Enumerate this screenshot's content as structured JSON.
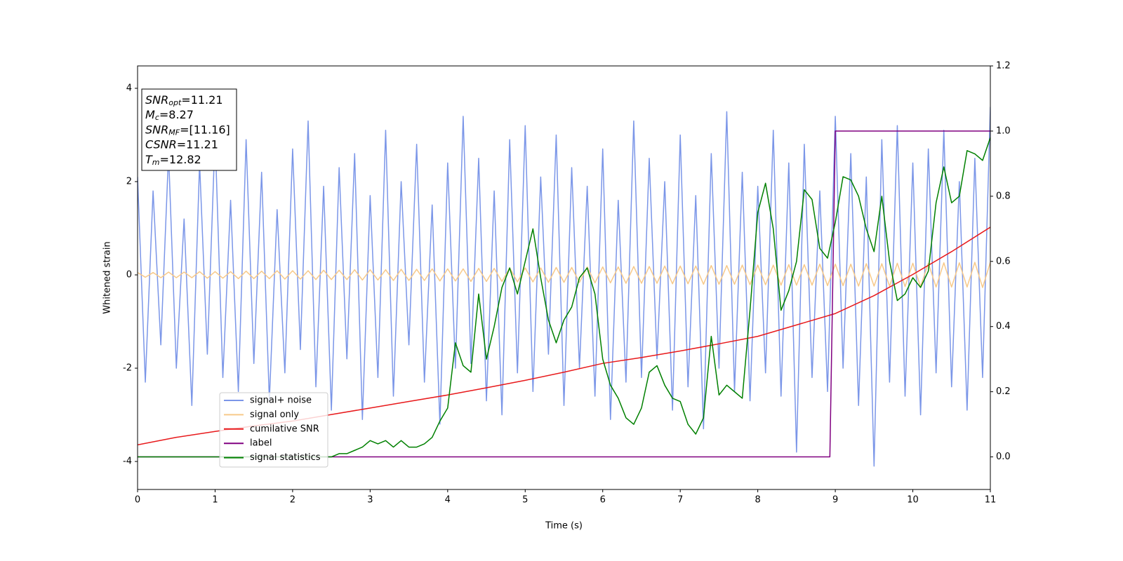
{
  "chart_data": {
    "type": "line",
    "xlabel": "Time (s)",
    "ylabel": "Whitened strain",
    "xlim": [
      0,
      11
    ],
    "xticks": [
      0,
      1,
      2,
      3,
      4,
      5,
      6,
      7,
      8,
      9,
      10,
      11
    ],
    "ylim": [
      -4.6,
      4.48
    ],
    "yticks": [
      -4,
      -2,
      0,
      2,
      4
    ],
    "y2lim": [
      -0.1,
      1.2
    ],
    "y2ticks": [
      {
        "value": 0,
        "label": "0.0"
      },
      {
        "value": 0.2,
        "label": "0.2"
      },
      {
        "value": 0.4,
        "label": "0.4"
      },
      {
        "value": 0.6,
        "label": "0.6"
      },
      {
        "value": 0.8,
        "label": "0.8"
      },
      {
        "value": 1,
        "label": "1.0"
      },
      {
        "value": 1.2,
        "label": "1.2"
      }
    ],
    "x": [
      0,
      0.1,
      0.2,
      0.3,
      0.4,
      0.5,
      0.6,
      0.7,
      0.8,
      0.9,
      1,
      1.1,
      1.2,
      1.3,
      1.4,
      1.5,
      1.6,
      1.7,
      1.8,
      1.9,
      2,
      2.1,
      2.2,
      2.3,
      2.4,
      2.5,
      2.6,
      2.7,
      2.8,
      2.9,
      3,
      3.1,
      3.2,
      3.3,
      3.4,
      3.5,
      3.6,
      3.7,
      3.8,
      3.9,
      4,
      4.1,
      4.2,
      4.3,
      4.4,
      4.5,
      4.6,
      4.7,
      4.8,
      4.9,
      5,
      5.1,
      5.2,
      5.3,
      5.4,
      5.5,
      5.6,
      5.7,
      5.8,
      5.9,
      6,
      6.1,
      6.2,
      6.3,
      6.4,
      6.5,
      6.6,
      6.7,
      6.8,
      6.9,
      7,
      7.1,
      7.2,
      7.3,
      7.4,
      7.5,
      7.6,
      7.7,
      7.8,
      7.9,
      8,
      8.1,
      8.2,
      8.3,
      8.4,
      8.5,
      8.6,
      8.7,
      8.8,
      8.9,
      9,
      9.1,
      9.2,
      9.3,
      9.4,
      9.5,
      9.6,
      9.7,
      9.8,
      9.9,
      10,
      10.1,
      10.2,
      10.3,
      10.4,
      10.5,
      10.6,
      10.7,
      10.8,
      10.9,
      11
    ],
    "series": [
      {
        "name": "signal+ noise",
        "color": "#7b96e8",
        "axis": "y",
        "values": [
          2.1,
          -2.3,
          1.8,
          -1.5,
          2.6,
          -2.0,
          1.2,
          -2.8,
          2.4,
          -1.7,
          3.0,
          -2.2,
          1.6,
          -2.5,
          2.9,
          -1.9,
          2.2,
          -2.7,
          1.4,
          -2.1,
          2.7,
          -1.6,
          3.3,
          -2.4,
          1.9,
          -2.9,
          2.3,
          -1.8,
          2.6,
          -3.1,
          1.7,
          -2.2,
          3.1,
          -2.6,
          2.0,
          -1.5,
          2.8,
          -2.3,
          1.5,
          -3.2,
          2.4,
          -2.0,
          3.4,
          -1.9,
          2.5,
          -2.7,
          1.8,
          -3.0,
          2.9,
          -2.1,
          3.2,
          -2.5,
          2.1,
          -1.7,
          3.0,
          -2.8,
          2.3,
          -2.0,
          1.9,
          -2.6,
          2.7,
          -3.1,
          1.6,
          -2.3,
          3.3,
          -2.2,
          2.5,
          -1.8,
          2.0,
          -2.9,
          3.0,
          -2.4,
          1.7,
          -3.3,
          2.6,
          -2.0,
          3.5,
          -2.5,
          2.2,
          -2.7,
          1.9,
          -2.1,
          3.1,
          -2.6,
          2.4,
          -3.8,
          2.8,
          -2.2,
          1.8,
          -2.5,
          3.4,
          -2.0,
          2.6,
          -2.8,
          2.1,
          -4.1,
          2.9,
          -2.3,
          3.2,
          -2.6,
          2.4,
          -3.0,
          2.7,
          -2.1,
          3.1,
          -2.4,
          2.0,
          -2.9,
          2.5,
          -2.2,
          3.6
        ]
      },
      {
        "name": "signal only",
        "color": "#f7c98a",
        "axis": "y",
        "values": [
          0.05,
          -0.05,
          0.05,
          -0.06,
          0.06,
          -0.06,
          0.06,
          -0.06,
          0.07,
          -0.07,
          0.07,
          -0.07,
          0.07,
          -0.08,
          0.08,
          -0.08,
          0.08,
          -0.08,
          0.09,
          -0.09,
          0.09,
          -0.09,
          0.09,
          -0.1,
          0.1,
          -0.1,
          0.1,
          -0.1,
          0.11,
          -0.11,
          0.11,
          -0.11,
          0.11,
          -0.12,
          0.12,
          -0.12,
          0.12,
          -0.12,
          0.13,
          -0.13,
          0.13,
          -0.13,
          0.13,
          -0.14,
          0.14,
          -0.14,
          0.14,
          -0.14,
          0.15,
          -0.15,
          0.15,
          -0.15,
          0.15,
          -0.16,
          0.16,
          -0.16,
          0.16,
          -0.16,
          0.17,
          -0.17,
          0.17,
          -0.17,
          0.17,
          -0.18,
          0.18,
          -0.18,
          0.18,
          -0.18,
          0.19,
          -0.19,
          0.19,
          -0.19,
          0.19,
          -0.2,
          0.2,
          -0.2,
          0.2,
          -0.2,
          0.21,
          -0.21,
          0.21,
          -0.21,
          0.21,
          -0.22,
          0.22,
          -0.22,
          0.22,
          -0.22,
          0.23,
          -0.23,
          0.23,
          -0.23,
          0.23,
          -0.24,
          0.24,
          -0.24,
          0.24,
          -0.24,
          0.25,
          -0.25,
          0.25,
          -0.25,
          0.25,
          -0.26,
          0.26,
          -0.26,
          0.26,
          -0.26,
          0.27,
          -0.27,
          0.27
        ]
      },
      {
        "name": "cumilative SNR",
        "color": "#e8191b",
        "axis": "y2",
        "x": [
          0,
          0.5,
          1,
          1.5,
          2,
          2.5,
          3,
          3.5,
          4,
          4.5,
          5,
          5.5,
          6,
          6.5,
          7,
          7.5,
          8,
          8.5,
          9,
          9.5,
          10,
          10.5,
          11
        ],
        "values": [
          0.037,
          0.06,
          0.078,
          0.095,
          0.11,
          0.13,
          0.15,
          0.17,
          0.19,
          0.212,
          0.235,
          0.26,
          0.287,
          0.305,
          0.325,
          0.347,
          0.37,
          0.405,
          0.44,
          0.495,
          0.56,
          0.63,
          0.705
        ]
      },
      {
        "name": "label",
        "color": "#800080",
        "axis": "y2",
        "x": [
          0,
          8.93,
          9,
          11
        ],
        "values": [
          0,
          0,
          1,
          1
        ]
      },
      {
        "name": "signal statistics",
        "color": "#008000",
        "axis": "y2",
        "values": [
          0,
          0,
          0,
          0,
          0,
          0,
          0,
          0,
          0,
          0,
          0,
          0,
          0,
          0,
          0,
          0,
          0,
          0,
          0,
          0,
          0,
          0,
          0,
          0,
          0,
          0,
          0.01,
          0.01,
          0.02,
          0.03,
          0.05,
          0.04,
          0.05,
          0.03,
          0.05,
          0.03,
          0.03,
          0.04,
          0.06,
          0.11,
          0.15,
          0.35,
          0.28,
          0.26,
          0.5,
          0.3,
          0.4,
          0.52,
          0.58,
          0.5,
          0.6,
          0.7,
          0.55,
          0.42,
          0.35,
          0.42,
          0.46,
          0.55,
          0.58,
          0.5,
          0.3,
          0.22,
          0.18,
          0.12,
          0.1,
          0.15,
          0.26,
          0.28,
          0.22,
          0.18,
          0.17,
          0.1,
          0.07,
          0.12,
          0.37,
          0.19,
          0.22,
          0.2,
          0.18,
          0.45,
          0.75,
          0.84,
          0.7,
          0.45,
          0.51,
          0.6,
          0.82,
          0.79,
          0.64,
          0.61,
          0.72,
          0.86,
          0.85,
          0.8,
          0.7,
          0.63,
          0.8,
          0.6,
          0.48,
          0.5,
          0.55,
          0.52,
          0.57,
          0.78,
          0.89,
          0.78,
          0.8,
          0.94,
          0.93,
          0.91,
          0.98
        ]
      }
    ],
    "annotation": [
      {
        "text": "SNR",
        "sub": "opt",
        "value": "=11.21"
      },
      {
        "text": "M",
        "sub": "c",
        "value": "=8.27"
      },
      {
        "text": "SNR",
        "sub": "MF",
        "value": "=[11.16]"
      },
      {
        "text": "CSNR",
        "value": "=11.21"
      },
      {
        "text": "T",
        "sub": "m",
        "value": "=12.82"
      }
    ]
  }
}
